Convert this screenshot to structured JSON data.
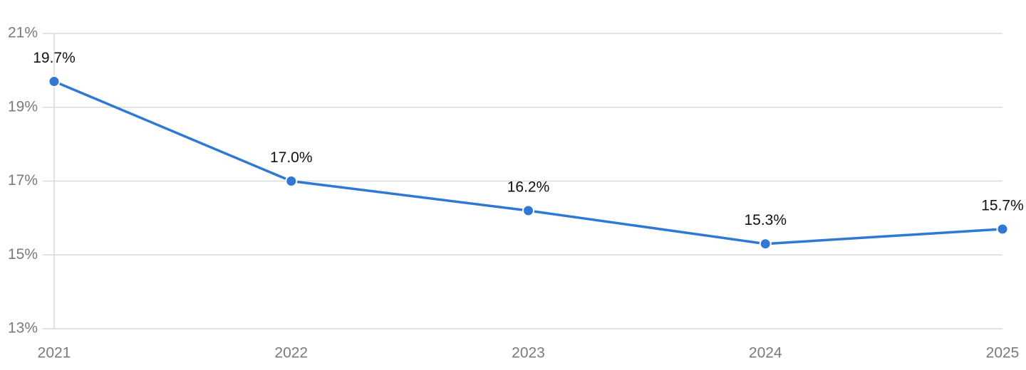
{
  "chart_data": {
    "type": "line",
    "categories": [
      "2021",
      "2022",
      "2023",
      "2024",
      "2025"
    ],
    "values": [
      19.7,
      17.0,
      16.2,
      15.3,
      15.7
    ],
    "value_labels": [
      "19.7%",
      "17.0%",
      "16.2%",
      "15.3%",
      "15.7%"
    ],
    "color": "#2f78d4",
    "ylim": [
      13,
      21
    ],
    "yticks": [
      {
        "value": 13,
        "label": "13%"
      },
      {
        "value": 15,
        "label": "15%"
      },
      {
        "value": 17,
        "label": "17%"
      },
      {
        "value": 19,
        "label": "19%"
      },
      {
        "value": 21,
        "label": "21%"
      }
    ],
    "grid": true
  }
}
